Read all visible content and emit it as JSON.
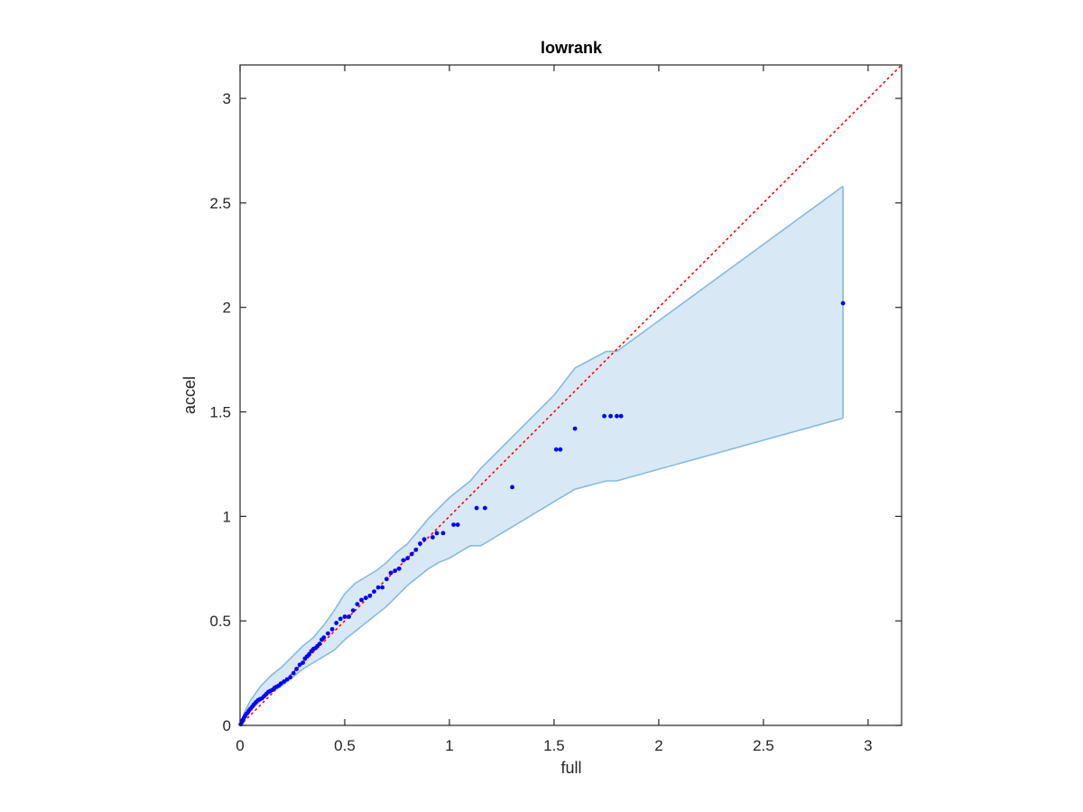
{
  "chart_data": {
    "type": "scatter",
    "title": "lowrank",
    "xlabel": "full",
    "ylabel": "accel",
    "xlim": [
      0,
      3.16
    ],
    "ylim": [
      0,
      3.16
    ],
    "xticks": [
      0,
      0.5,
      1,
      1.5,
      2,
      2.5,
      3
    ],
    "xtick_labels": [
      "0",
      "0.5",
      "1",
      "1.5",
      "2",
      "2.5",
      "3"
    ],
    "yticks": [
      0,
      0.5,
      1,
      1.5,
      2,
      2.5,
      3
    ],
    "ytick_labels": [
      "0",
      "0.5",
      "1",
      "1.5",
      "2",
      "2.5",
      "3"
    ],
    "grid": false,
    "box": true,
    "colors": {
      "points": "#0000ff",
      "reference_line": "#ff0000",
      "band_fill": "#d8e8f4",
      "band_edge": "#86bbe0",
      "axes": "#262626"
    },
    "reference_line": {
      "style": "dotted",
      "x": [
        0,
        3.16
      ],
      "y": [
        0,
        3.16
      ]
    },
    "band": {
      "x": [
        0,
        0.02,
        0.05,
        0.1,
        0.15,
        0.2,
        0.25,
        0.3,
        0.35,
        0.4,
        0.45,
        0.5,
        0.55,
        0.6,
        0.65,
        0.7,
        0.75,
        0.8,
        0.85,
        0.9,
        0.95,
        1.0,
        1.1,
        1.15,
        1.3,
        1.5,
        1.6,
        1.75,
        1.8,
        2.88
      ],
      "upper": [
        0,
        0.06,
        0.12,
        0.19,
        0.24,
        0.28,
        0.33,
        0.38,
        0.42,
        0.48,
        0.55,
        0.63,
        0.68,
        0.71,
        0.74,
        0.78,
        0.83,
        0.87,
        0.93,
        0.99,
        1.04,
        1.09,
        1.17,
        1.23,
        1.38,
        1.58,
        1.71,
        1.79,
        1.79,
        2.58
      ],
      "lower": [
        0,
        0.03,
        0.07,
        0.12,
        0.16,
        0.19,
        0.23,
        0.27,
        0.3,
        0.33,
        0.36,
        0.41,
        0.45,
        0.49,
        0.53,
        0.57,
        0.62,
        0.67,
        0.71,
        0.75,
        0.78,
        0.8,
        0.86,
        0.86,
        0.95,
        1.07,
        1.13,
        1.17,
        1.17,
        1.47
      ]
    },
    "series": [
      {
        "x": [
          0.003,
          0.008,
          0.012,
          0.018,
          0.024,
          0.03,
          0.036,
          0.042,
          0.05,
          0.058,
          0.066,
          0.075,
          0.085,
          0.095,
          0.105,
          0.115,
          0.125,
          0.135,
          0.145,
          0.155,
          0.165,
          0.175,
          0.185,
          0.195,
          0.21,
          0.225,
          0.24,
          0.255,
          0.27,
          0.285,
          0.3,
          0.31,
          0.32,
          0.33,
          0.34,
          0.35,
          0.36,
          0.37,
          0.38,
          0.39,
          0.4,
          0.42,
          0.44,
          0.46,
          0.48,
          0.5,
          0.52,
          0.54,
          0.56,
          0.58,
          0.6,
          0.62,
          0.64,
          0.66,
          0.68,
          0.7,
          0.72,
          0.74,
          0.76,
          0.78,
          0.8,
          0.82,
          0.84,
          0.86,
          0.88,
          0.92,
          0.94,
          0.97,
          1.02,
          1.04,
          1.13,
          1.17,
          1.3,
          1.51,
          1.53,
          1.6,
          1.74,
          1.77,
          1.8,
          1.82,
          2.88
        ],
        "y": [
          0.005,
          0.015,
          0.025,
          0.035,
          0.045,
          0.055,
          0.06,
          0.07,
          0.08,
          0.09,
          0.1,
          0.11,
          0.12,
          0.125,
          0.13,
          0.14,
          0.15,
          0.16,
          0.165,
          0.17,
          0.18,
          0.185,
          0.19,
          0.2,
          0.21,
          0.22,
          0.23,
          0.25,
          0.27,
          0.29,
          0.3,
          0.32,
          0.33,
          0.34,
          0.355,
          0.365,
          0.37,
          0.38,
          0.39,
          0.41,
          0.42,
          0.44,
          0.46,
          0.49,
          0.51,
          0.52,
          0.52,
          0.55,
          0.58,
          0.6,
          0.61,
          0.62,
          0.64,
          0.66,
          0.66,
          0.7,
          0.73,
          0.74,
          0.75,
          0.79,
          0.8,
          0.82,
          0.84,
          0.87,
          0.89,
          0.9,
          0.92,
          0.92,
          0.96,
          0.96,
          1.04,
          1.04,
          1.14,
          1.32,
          1.32,
          1.42,
          1.48,
          1.48,
          1.48,
          1.48,
          2.02
        ]
      }
    ]
  }
}
